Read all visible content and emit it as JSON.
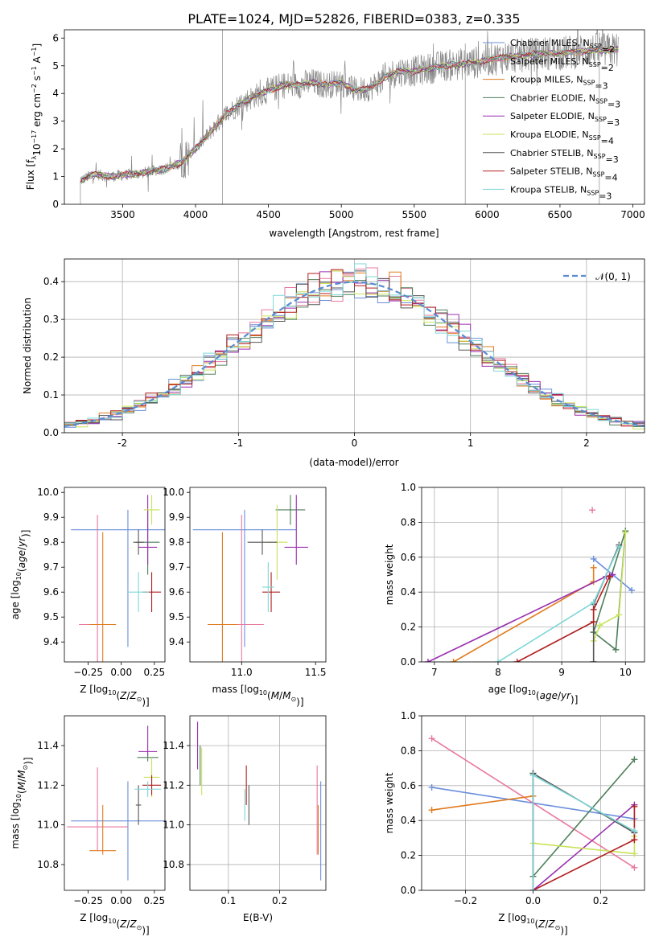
{
  "colors": {
    "chabrier_miles": "#6a8fdb",
    "salpeter_miles": "#e8789e",
    "kroupa_miles": "#e07b1f",
    "chabrier_elodie": "#4e7f5a",
    "salpeter_elodie": "#9a2fb0",
    "kroupa_elodie": "#c8e35a",
    "chabrier_stelib": "#555555",
    "salpeter_stelib": "#b01e1e",
    "kroupa_stelib": "#7fd6d6",
    "data": "#888888"
  },
  "chart_data": [
    {
      "id": "spectrum",
      "type": "line",
      "title": "PLATE=1024, MJD=52826, FIBERID=0383, z=0.335",
      "xlabel": "wavelength [Angstrom, rest frame]",
      "ylabel": "Flux [f_λ 10^-17 erg cm^-2 s^-1 A^-1]",
      "xlim": [
        3100,
        7080
      ],
      "ylim": [
        0,
        6.3
      ],
      "xticks": [
        3500,
        4000,
        4500,
        5000,
        5500,
        6000,
        6500,
        7000
      ],
      "yticks": [
        0,
        1,
        2,
        3,
        4,
        5,
        6
      ],
      "legend_placement": "top-right",
      "legend": [
        "Chabrier MILES, N_SSP=2",
        "Salpeter MILES, N_SSP=2",
        "Kroupa MILES, N_SSP=3",
        "Chabrier ELODIE, N_SSP=3",
        "Salpeter ELODIE, N_SSP=3",
        "Kroupa ELODIE, N_SSP=4",
        "Chabrier STELIB, N_SSP=3",
        "Salpeter STELIB, N_SSP=4",
        "Kroupa STELIB, N_SSP=3"
      ],
      "continuum": {
        "x": [
          3210,
          3300,
          3400,
          3500,
          3600,
          3700,
          3800,
          3900,
          4000,
          4100,
          4200,
          4300,
          4400,
          4500,
          4600,
          4700,
          4800,
          4900,
          5000,
          5100,
          5200,
          5300,
          5400,
          5500,
          5600,
          5700,
          5800,
          5900,
          6000,
          6100,
          6200,
          6300,
          6400,
          6500,
          6600,
          6700,
          6800,
          6900
        ],
        "y": [
          0.85,
          1.1,
          1.0,
          1.05,
          1.1,
          1.2,
          1.3,
          1.5,
          2.0,
          2.6,
          3.2,
          3.6,
          3.9,
          4.1,
          4.3,
          4.3,
          4.4,
          4.3,
          4.4,
          4.1,
          4.2,
          4.6,
          4.8,
          4.8,
          4.9,
          5.0,
          5.05,
          5.1,
          5.2,
          5.3,
          5.35,
          5.4,
          5.45,
          5.45,
          5.5,
          5.55,
          5.55,
          5.6
        ]
      }
    },
    {
      "id": "residuals",
      "type": "line",
      "xlabel": "(data-model)/error",
      "ylabel": "Normed distribution",
      "xlim": [
        -2.5,
        2.5
      ],
      "ylim": [
        0,
        0.46
      ],
      "xticks": [
        -2,
        -1,
        0,
        1,
        2
      ],
      "yticks": [
        0.0,
        0.1,
        0.2,
        0.3,
        0.4
      ],
      "grid": true,
      "legend": [
        "𝒩(0, 1)"
      ],
      "legend_placement": "top-right",
      "bin_width": 0.1
    },
    {
      "id": "age_vs_Z",
      "type": "scatter",
      "xlabel": "Z [log10(Z/Z⊙)]",
      "ylabel": "age  [log10(age/yr)]",
      "xlim": [
        -0.43,
        0.33
      ],
      "ylim": [
        9.32,
        10.02
      ],
      "xticks": [
        -0.25,
        0.0,
        0.25
      ],
      "yticks": [
        9.4,
        9.5,
        9.6,
        9.7,
        9.8,
        9.9,
        10.0
      ],
      "points": [
        {
          "model": "chabrier_miles",
          "x": 0.05,
          "y": 9.85,
          "xerr": 0.43,
          "yerr": [
            0.47,
            0.08
          ]
        },
        {
          "model": "salpeter_miles",
          "x": -0.18,
          "y": 9.47,
          "xerr": 0.14,
          "yerr": 0.44
        },
        {
          "model": "kroupa_miles",
          "x": -0.14,
          "y": 9.47,
          "xerr": 0.1,
          "yerr": 0.37
        },
        {
          "model": "chabrier_elodie",
          "x": 0.2,
          "y": 9.8,
          "xerr": 0.09,
          "yerr": 0.13
        },
        {
          "model": "salpeter_elodie",
          "x": 0.2,
          "y": 9.78,
          "xerr": 0.07,
          "yerr": [
            0.07,
            0.21
          ]
        },
        {
          "model": "kroupa_elodie",
          "x": 0.23,
          "y": 9.93,
          "xerr": 0.06,
          "yerr": 0.06
        },
        {
          "model": "chabrier_stelib",
          "x": 0.13,
          "y": 9.8,
          "xerr": 0.04,
          "yerr": 0.05
        },
        {
          "model": "salpeter_stelib",
          "x": 0.23,
          "y": 9.6,
          "xerr": 0.07,
          "yerr": 0.08
        },
        {
          "model": "kroupa_stelib",
          "x": 0.13,
          "y": 9.6,
          "xerr": 0.08,
          "yerr": 0.08
        }
      ]
    },
    {
      "id": "age_vs_mass",
      "type": "scatter",
      "xlabel": "mass [log10(M/M⊙)]",
      "xlim": [
        10.65,
        11.57
      ],
      "ylim": [
        9.32,
        10.02
      ],
      "xticks": [
        11.0,
        11.5
      ],
      "yticks": [
        9.4,
        9.5,
        9.6,
        9.7,
        9.8,
        9.9,
        10.0
      ],
      "points": [
        {
          "model": "chabrier_miles",
          "x": 11.02,
          "y": 9.85,
          "xerr": 0.35,
          "yerr": [
            0.47,
            0.08
          ]
        },
        {
          "model": "salpeter_miles",
          "x": 11.0,
          "y": 9.47,
          "xerr": 0.15,
          "yerr": 0.44
        },
        {
          "model": "kroupa_miles",
          "x": 10.87,
          "y": 9.47,
          "xerr": 0.1,
          "yerr": 0.37
        },
        {
          "model": "chabrier_elodie",
          "x": 11.33,
          "y": 9.93,
          "xerr": 0.1,
          "yerr": 0.06
        },
        {
          "model": "salpeter_elodie",
          "x": 11.37,
          "y": 9.78,
          "xerr": 0.08,
          "yerr": [
            0.07,
            0.21
          ]
        },
        {
          "model": "kroupa_elodie",
          "x": 11.24,
          "y": 9.8,
          "xerr": 0.07,
          "yerr": 0.15
        },
        {
          "model": "chabrier_stelib",
          "x": 11.14,
          "y": 9.8,
          "xerr": 0.1,
          "yerr": 0.05
        },
        {
          "model": "salpeter_stelib",
          "x": 11.2,
          "y": 9.6,
          "xerr": 0.06,
          "yerr": 0.08
        },
        {
          "model": "kroupa_stelib",
          "x": 11.18,
          "y": 9.62,
          "xerr": 0.04,
          "yerr": 0.1
        }
      ]
    },
    {
      "id": "weight_vs_age",
      "type": "line",
      "xlabel": "age  [log10(age/yr)]",
      "ylabel": "mass weight",
      "xlim": [
        6.8,
        10.3
      ],
      "ylim": [
        0,
        1
      ],
      "xticks": [
        7,
        8,
        9,
        10
      ],
      "yticks": [
        0.0,
        0.2,
        0.4,
        0.6,
        0.8,
        1.0
      ],
      "grid": true,
      "series": [
        {
          "model": "chabrier_miles",
          "x": [
            9.5,
            10.1
          ],
          "y": [
            0.59,
            0.41
          ]
        },
        {
          "model": "salpeter_miles",
          "x": [
            9.48
          ],
          "y": [
            0.87
          ]
        },
        {
          "model": "kroupa_miles",
          "x": [
            7.3,
            9.5,
            9.5
          ],
          "y": [
            0.0,
            0.46,
            0.54
          ]
        },
        {
          "model": "chabrier_elodie",
          "x": [
            9.5,
            9.85,
            10.0,
            9.5
          ],
          "y": [
            0.17,
            0.07,
            0.75,
            0.17
          ]
        },
        {
          "model": "salpeter_elodie",
          "x": [
            6.9,
            9.7,
            9.8
          ],
          "y": [
            0.0,
            0.49,
            0.5
          ]
        },
        {
          "model": "kroupa_elodie",
          "x": [
            9.5,
            9.6,
            9.9,
            10.0
          ],
          "y": [
            0.12,
            0.21,
            0.27,
            0.74
          ]
        },
        {
          "model": "chabrier_stelib",
          "x": [
            9.5,
            9.5,
            9.9,
            9.5
          ],
          "y": [
            0.0,
            0.33,
            0.67,
            0.33
          ]
        },
        {
          "model": "salpeter_stelib",
          "x": [
            8.3,
            9.5,
            9.5,
            9.75
          ],
          "y": [
            0.0,
            0.23,
            0.3,
            0.49
          ]
        },
        {
          "model": "kroupa_stelib",
          "x": [
            8.0,
            9.5,
            9.9
          ],
          "y": [
            0.0,
            0.34,
            0.66
          ]
        }
      ]
    },
    {
      "id": "mass_vs_Z",
      "type": "scatter",
      "xlabel": "Z [log10(Z/Z⊙)]",
      "ylabel": "mass [log10(M/M⊙)]",
      "xlim": [
        -0.43,
        0.33
      ],
      "ylim": [
        10.67,
        11.55
      ],
      "xticks": [
        -0.25,
        0.0,
        0.25
      ],
      "yticks": [
        10.8,
        11.0,
        11.2,
        11.4
      ],
      "points": [
        {
          "model": "chabrier_miles",
          "x": 0.05,
          "y": 11.02,
          "xerr": 0.43,
          "yerr": [
            0.3,
            0.2
          ]
        },
        {
          "model": "salpeter_miles",
          "x": -0.18,
          "y": 10.99,
          "xerr": 0.23,
          "yerr": [
            0.12,
            0.3
          ]
        },
        {
          "model": "kroupa_miles",
          "x": -0.14,
          "y": 10.87,
          "xerr": 0.1,
          "yerr": [
            0.02,
            0.23
          ]
        },
        {
          "model": "chabrier_elodie",
          "x": 0.2,
          "y": 11.34,
          "xerr": 0.08,
          "yerr": 0.02
        },
        {
          "model": "salpeter_elodie",
          "x": 0.2,
          "y": 11.37,
          "xerr": 0.07,
          "yerr": [
            0.02,
            0.13
          ]
        },
        {
          "model": "kroupa_elodie",
          "x": 0.23,
          "y": 11.24,
          "xerr": 0.06,
          "yerr": 0.1
        },
        {
          "model": "chabrier_stelib",
          "x": 0.13,
          "y": 11.1,
          "xerr": 0.02,
          "yerr": 0.1
        },
        {
          "model": "salpeter_stelib",
          "x": 0.23,
          "y": 11.2,
          "xerr": 0.07,
          "yerr": 0.05
        },
        {
          "model": "kroupa_stelib",
          "x": 0.2,
          "y": 11.18,
          "xerr": 0.1,
          "yerr": 0.04
        }
      ]
    },
    {
      "id": "mass_vs_EBV",
      "type": "scatter",
      "xlabel": "E(B-V)",
      "xlim": [
        0.025,
        0.29
      ],
      "ylim": [
        10.67,
        11.55
      ],
      "xticks": [
        0.1,
        0.2
      ],
      "yticks": [
        10.8,
        11.0,
        11.2,
        11.4
      ],
      "grid": true,
      "points": [
        {
          "model": "chabrier_miles",
          "x": 0.28,
          "y": 11.02,
          "yerr": [
            0.3,
            0.2
          ]
        },
        {
          "model": "salpeter_miles",
          "x": 0.273,
          "y": 11.1,
          "yerr": [
            0.25,
            0.2
          ]
        },
        {
          "model": "kroupa_miles",
          "x": 0.275,
          "y": 10.95,
          "yerr": [
            0.1,
            0.15
          ]
        },
        {
          "model": "chabrier_elodie",
          "x": 0.045,
          "y": 11.3,
          "yerr": 0.1
        },
        {
          "model": "salpeter_elodie",
          "x": 0.04,
          "y": 11.4,
          "yerr": 0.12
        },
        {
          "model": "kroupa_elodie",
          "x": 0.048,
          "y": 11.27,
          "yerr": 0.12
        },
        {
          "model": "chabrier_stelib",
          "x": 0.14,
          "y": 11.1,
          "yerr": 0.1
        },
        {
          "model": "salpeter_stelib",
          "x": 0.135,
          "y": 11.2,
          "yerr": 0.1
        },
        {
          "model": "kroupa_stelib",
          "x": 0.132,
          "y": 11.1,
          "yerr": 0.08
        }
      ]
    },
    {
      "id": "weight_vs_Z",
      "type": "line",
      "xlabel": "Z [log10(Z/Z⊙)]",
      "ylabel": "mass weight",
      "xlim": [
        -0.33,
        0.33
      ],
      "ylim": [
        0,
        1
      ],
      "xticks": [
        -0.2,
        0.0,
        0.2
      ],
      "yticks": [
        0.0,
        0.2,
        0.4,
        0.6,
        0.8,
        1.0
      ],
      "grid": true,
      "series": [
        {
          "model": "chabrier_miles",
          "x": [
            -0.3,
            0.3
          ],
          "y": [
            0.59,
            0.41
          ]
        },
        {
          "model": "salpeter_miles",
          "x": [
            -0.3,
            0.3
          ],
          "y": [
            0.87,
            0.13
          ]
        },
        {
          "model": "kroupa_miles",
          "x": [
            -0.3,
            0.0
          ],
          "y": [
            0.46,
            0.54
          ]
        },
        {
          "model": "chabrier_elodie",
          "x": [
            0.0,
            0.0,
            0.3
          ],
          "y": [
            0.67,
            0.08,
            0.75
          ]
        },
        {
          "model": "salpeter_elodie",
          "x": [
            0.0,
            0.3
          ],
          "y": [
            0.0,
            0.49
          ]
        },
        {
          "model": "kroupa_elodie",
          "x": [
            0.0,
            0.3,
            0.3
          ],
          "y": [
            0.27,
            0.21,
            0.31
          ]
        },
        {
          "model": "chabrier_stelib",
          "x": [
            0.0,
            0.0,
            0.3
          ],
          "y": [
            0.0,
            0.67,
            0.33
          ]
        },
        {
          "model": "salpeter_stelib",
          "x": [
            0.0,
            0.3,
            0.3
          ],
          "y": [
            0.0,
            0.29,
            0.48
          ]
        },
        {
          "model": "kroupa_stelib",
          "x": [
            0.0,
            0.0,
            0.3
          ],
          "y": [
            0.0,
            0.66,
            0.34
          ]
        }
      ]
    }
  ]
}
